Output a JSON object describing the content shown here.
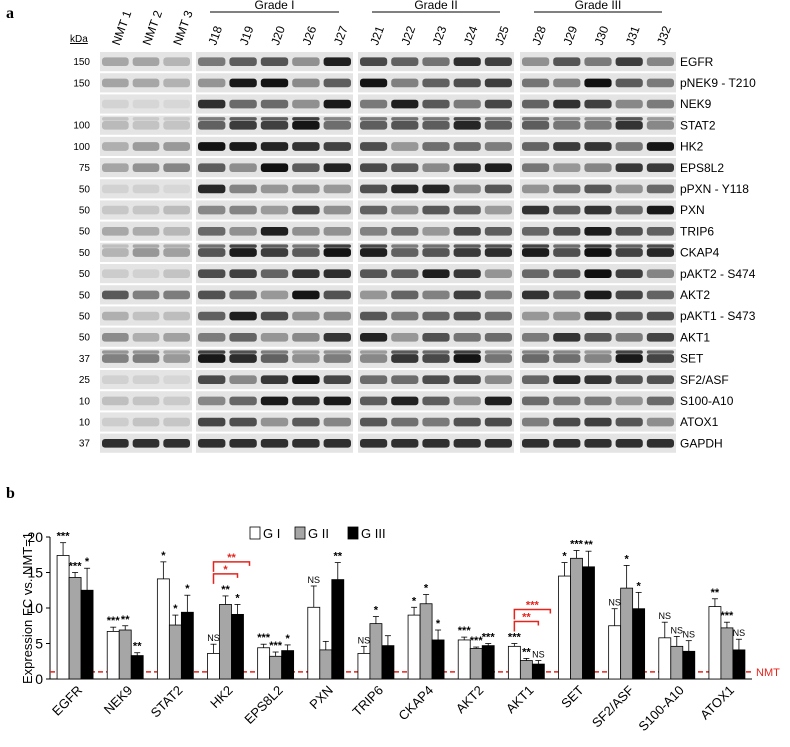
{
  "panel_a": {
    "label": "a",
    "kda_label": "kDa",
    "lanes": [
      "NMT 1",
      "NMT 2",
      "NMT 3",
      "J18",
      "J19",
      "J20",
      "J26",
      "J27",
      "J21",
      "J22",
      "J23",
      "J24",
      "J25",
      "J28",
      "J29",
      "J30",
      "J31",
      "J32"
    ],
    "grades": [
      "Grade I",
      "Grade II",
      "Grade III"
    ],
    "rows": [
      {
        "name": "EGFR",
        "kda": "150"
      },
      {
        "name": "pNEK9 - T210",
        "kda": "150"
      },
      {
        "name": "NEK9",
        "kda": ""
      },
      {
        "name": "STAT2",
        "kda": "100"
      },
      {
        "name": "HK2",
        "kda": "100"
      },
      {
        "name": "EPS8L2",
        "kda": "75"
      },
      {
        "name": "pPXN - Y118",
        "kda": "50"
      },
      {
        "name": "PXN",
        "kda": "50"
      },
      {
        "name": "TRIP6",
        "kda": "50"
      },
      {
        "name": "CKAP4",
        "kda": "50"
      },
      {
        "name": "pAKT2 - S474",
        "kda": "50"
      },
      {
        "name": "AKT2",
        "kda": "50"
      },
      {
        "name": "pAKT1 - S473",
        "kda": "50"
      },
      {
        "name": "AKT1",
        "kda": "50"
      },
      {
        "name": "SET",
        "kda": "37"
      },
      {
        "name": "SF2/ASF",
        "kda": "25"
      },
      {
        "name": "S100-A10",
        "kda": "10"
      },
      {
        "name": "ATOX1",
        "kda": "10"
      },
      {
        "name": "GAPDH",
        "kda": "37"
      }
    ],
    "colors": {
      "blot_bg": "#e4e4e4",
      "band": "#1e1e1e"
    }
  },
  "chart_data": {
    "type": "bar",
    "panel_label": "b",
    "ylabel": "Expression FC vs. NMT=1",
    "ylim": [
      0,
      20
    ],
    "yticks": [
      "0",
      "5",
      "10",
      "15",
      "20"
    ],
    "categories": [
      "EGFR",
      "NEK9",
      "STAT2",
      "HK2",
      "EPS8L2",
      "PXN",
      "TRIP6",
      "CKAP4",
      "AKT2",
      "AKT1",
      "SET",
      "SF2/ASF",
      "S100-A10",
      "ATOX1"
    ],
    "series": [
      {
        "name": "G I",
        "color": "#ffffff",
        "values": [
          17.4,
          6.7,
          14.1,
          3.6,
          4.4,
          10.1,
          3.6,
          9.0,
          5.5,
          4.6,
          14.5,
          7.5,
          5.8,
          10.2
        ],
        "errors": [
          1.8,
          0.6,
          2.4,
          1.3,
          0.5,
          3.0,
          1.0,
          1.1,
          0.4,
          0.4,
          1.9,
          2.4,
          2.2,
          1.1
        ],
        "sig": [
          "***",
          "***",
          "*",
          "NS",
          "***",
          "NS",
          "NS",
          "*",
          "***",
          "***",
          "*",
          "NS",
          "NS",
          "**"
        ]
      },
      {
        "name": "G II",
        "color": "#a6a6a6",
        "values": [
          14.3,
          6.9,
          7.6,
          10.5,
          3.2,
          4.1,
          7.8,
          10.6,
          4.3,
          2.6,
          17.0,
          12.8,
          4.6,
          7.2
        ],
        "errors": [
          0.7,
          0.6,
          1.4,
          1.2,
          0.6,
          1.2,
          1.0,
          1.3,
          0.2,
          0.3,
          1.1,
          3.2,
          1.4,
          0.8
        ],
        "sig": [
          "***",
          "**",
          "*",
          "**",
          "***",
          "",
          "*",
          "*",
          "***",
          "**",
          "***",
          "*",
          "NS",
          "***"
        ]
      },
      {
        "name": "G III",
        "color": "#000000",
        "values": [
          12.5,
          3.3,
          9.4,
          9.1,
          4.0,
          14.0,
          4.7,
          5.5,
          4.7,
          2.1,
          15.8,
          9.9,
          3.9,
          4.1
        ],
        "errors": [
          3.1,
          0.4,
          2.4,
          1.4,
          0.8,
          2.4,
          1.4,
          1.4,
          0.3,
          0.5,
          2.2,
          2.3,
          1.5,
          1.5
        ],
        "sig": [
          "*",
          "**",
          "*",
          "*",
          "*",
          "**",
          "",
          "*",
          "***",
          "NS",
          "**",
          "*",
          "NS",
          "NS"
        ]
      }
    ],
    "reference_line": {
      "value": 1,
      "label": "NMT",
      "color": "#e8231c"
    },
    "brackets": [
      {
        "category": "HK2",
        "marks": [
          "*",
          "**"
        ],
        "color": "#e8231c"
      },
      {
        "category": "AKT1",
        "marks": [
          "**",
          "***"
        ],
        "color": "#e8231c"
      }
    ],
    "legend": {
      "placement": "top-center",
      "entries": [
        "G I",
        "G II",
        "G III"
      ]
    }
  }
}
